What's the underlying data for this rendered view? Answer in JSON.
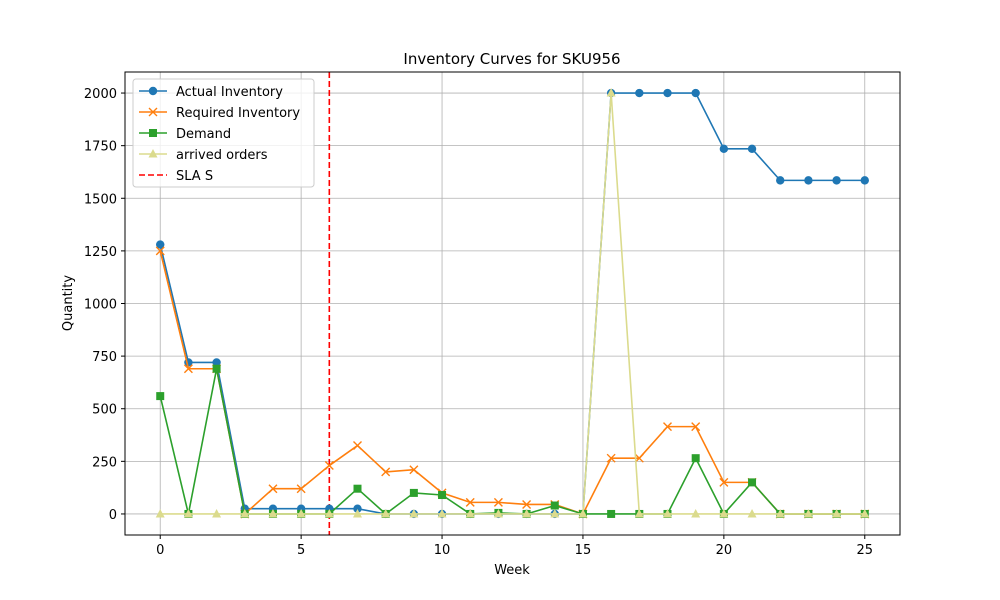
{
  "chart_data": {
    "type": "line",
    "title": "Inventory Curves for SKU956",
    "xlabel": "Week",
    "ylabel": "Quantity",
    "xlim": [
      -1.25,
      26.25
    ],
    "ylim": [
      -100,
      2100
    ],
    "xticks": [
      0,
      5,
      10,
      15,
      20,
      25
    ],
    "yticks": [
      0,
      250,
      500,
      750,
      1000,
      1250,
      1500,
      1750,
      2000
    ],
    "grid": true,
    "legend_position": "upper-left",
    "x": [
      0,
      1,
      2,
      3,
      4,
      5,
      6,
      7,
      8,
      9,
      10,
      11,
      12,
      13,
      14,
      15,
      16,
      17,
      18,
      19,
      20,
      21,
      22,
      23,
      24,
      25
    ],
    "series": [
      {
        "name": "Actual Inventory",
        "color": "#1f77b4",
        "marker": "circle",
        "linestyle": "solid",
        "values": [
          1280,
          720,
          720,
          25,
          25,
          25,
          25,
          25,
          0,
          0,
          0,
          0,
          0,
          0,
          0,
          0,
          2000,
          2000,
          2000,
          2000,
          1735,
          1735,
          1585,
          1585,
          1585,
          1585
        ]
      },
      {
        "name": "Required Inventory",
        "color": "#ff7f0e",
        "marker": "x",
        "linestyle": "solid",
        "values": [
          1250,
          690,
          690,
          0,
          120,
          120,
          230,
          325,
          200,
          210,
          100,
          55,
          55,
          45,
          45,
          0,
          265,
          265,
          415,
          415,
          150,
          150,
          0,
          0,
          0,
          0
        ]
      },
      {
        "name": "Demand",
        "color": "#2ca02c",
        "marker": "square",
        "linestyle": "solid",
        "values": [
          560,
          0,
          690,
          0,
          0,
          0,
          0,
          120,
          0,
          100,
          90,
          0,
          5,
          0,
          40,
          0,
          0,
          0,
          0,
          265,
          0,
          150,
          0,
          0,
          0,
          0
        ]
      },
      {
        "name": "arrived orders",
        "color": "#dbdb8d",
        "marker": "triangle",
        "linestyle": "solid",
        "values": [
          0,
          0,
          0,
          0,
          0,
          0,
          0,
          0,
          0,
          0,
          0,
          0,
          0,
          0,
          0,
          0,
          2000,
          0,
          0,
          0,
          0,
          0,
          0,
          0,
          0,
          0
        ]
      }
    ],
    "vline": {
      "name": "SLA S",
      "x": 6,
      "color": "#ff0000",
      "linestyle": "dashed"
    }
  }
}
